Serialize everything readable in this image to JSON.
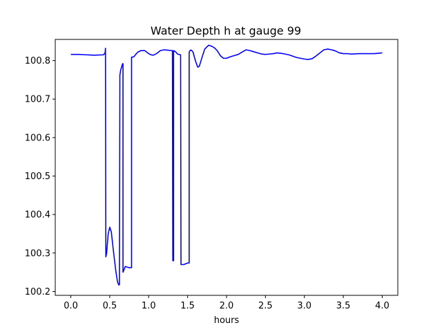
{
  "chart_data": {
    "type": "line",
    "title": "Water Depth h at gauge 99",
    "xlabel": "hours",
    "ylabel": "",
    "xlim": [
      -0.2,
      4.2
    ],
    "ylim": [
      100.19,
      100.855
    ],
    "xticks": [
      0.0,
      0.5,
      1.0,
      1.5,
      2.0,
      2.5,
      3.0,
      3.5,
      4.0
    ],
    "xtick_labels": [
      "0.0",
      "0.5",
      "1.0",
      "1.5",
      "2.0",
      "2.5",
      "3.0",
      "3.5",
      "4.0"
    ],
    "yticks": [
      100.2,
      100.3,
      100.4,
      100.5,
      100.6,
      100.7,
      100.8
    ],
    "ytick_labels": [
      "100.2",
      "100.3",
      "100.4",
      "100.5",
      "100.6",
      "100.7",
      "100.8"
    ],
    "grid": false,
    "series": [
      {
        "color": "#0000ff",
        "x": [
          0.0,
          0.1,
          0.2,
          0.3,
          0.42,
          0.44,
          0.445,
          0.45,
          0.46,
          0.48,
          0.5,
          0.52,
          0.55,
          0.58,
          0.6,
          0.615,
          0.625,
          0.63,
          0.64,
          0.665,
          0.67,
          0.67,
          0.68,
          0.7,
          0.73,
          0.75,
          0.76,
          0.78,
          0.78,
          0.79,
          0.81,
          0.83,
          0.86,
          0.9,
          0.95,
          1.0,
          1.03,
          1.06,
          1.1,
          1.15,
          1.2,
          1.25,
          1.29,
          1.305,
          1.31,
          1.32,
          1.32,
          1.325,
          1.33,
          1.35,
          1.37,
          1.41,
          1.415,
          1.42,
          1.45,
          1.5,
          1.52,
          1.52,
          1.535,
          1.55,
          1.57,
          1.6,
          1.63,
          1.65,
          1.68,
          1.72,
          1.77,
          1.8,
          1.84,
          1.88,
          1.92,
          1.96,
          2.0,
          2.05,
          2.1,
          2.15,
          2.2,
          2.25,
          2.3,
          2.35,
          2.4,
          2.45,
          2.5,
          2.55,
          2.6,
          2.65,
          2.7,
          2.75,
          2.8,
          2.9,
          3.0,
          3.05,
          3.1,
          3.15,
          3.2,
          3.25,
          3.3,
          3.35,
          3.4,
          3.45,
          3.5,
          3.55,
          3.6,
          3.7,
          3.8,
          3.9,
          4.0
        ],
        "y": [
          100.816,
          100.816,
          100.815,
          100.814,
          100.815,
          100.82,
          100.832,
          100.29,
          100.3,
          100.35,
          100.367,
          100.355,
          100.3,
          100.25,
          100.225,
          100.217,
          100.218,
          100.762,
          100.775,
          100.792,
          100.792,
          100.25,
          100.255,
          100.265,
          100.263,
          100.262,
          100.262,
          100.262,
          100.809,
          100.809,
          100.81,
          100.815,
          100.822,
          100.826,
          100.826,
          100.818,
          100.815,
          100.814,
          100.818,
          100.826,
          100.828,
          100.827,
          100.826,
          100.826,
          100.28,
          100.28,
          100.826,
          100.826,
          100.825,
          100.822,
          100.817,
          100.815,
          100.27,
          100.27,
          100.27,
          100.274,
          100.274,
          100.822,
          100.827,
          100.827,
          100.822,
          100.8,
          100.783,
          100.785,
          100.805,
          100.83,
          100.84,
          100.838,
          100.834,
          100.826,
          100.813,
          100.806,
          100.806,
          100.81,
          100.813,
          100.816,
          100.822,
          100.828,
          100.826,
          100.823,
          100.82,
          100.817,
          100.816,
          100.817,
          100.818,
          100.82,
          100.819,
          100.817,
          100.815,
          100.808,
          100.804,
          100.803,
          100.805,
          100.812,
          100.82,
          100.828,
          100.83,
          100.828,
          100.825,
          100.82,
          100.818,
          100.818,
          100.817,
          100.818,
          100.818,
          100.818,
          100.82
        ]
      }
    ]
  }
}
